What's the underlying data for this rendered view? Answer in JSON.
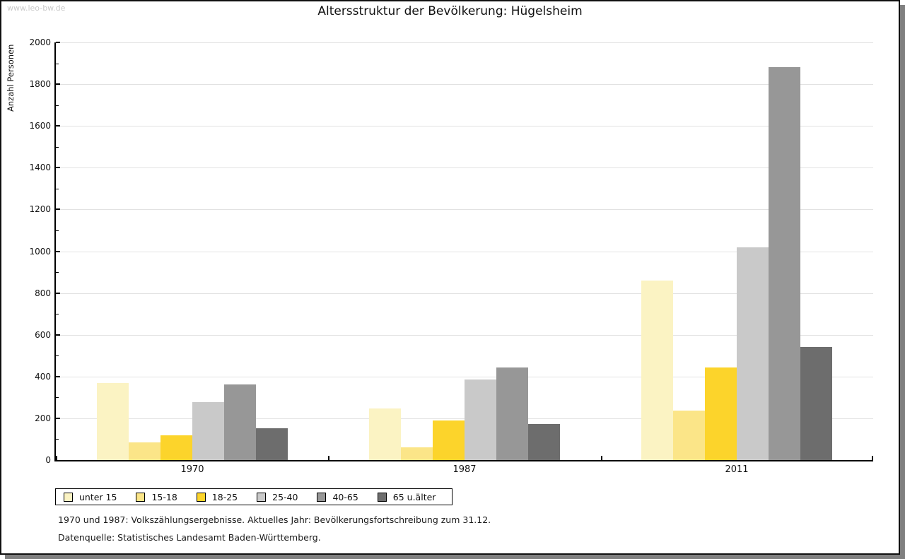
{
  "watermark": "www.leo-bw.de",
  "header": {
    "title": "Altersstruktur der Bevölkerung: Hügelsheim"
  },
  "chart_data": {
    "type": "bar",
    "title": "Altersstruktur der Bevölkerung: Hügelsheim",
    "xlabel": "",
    "ylabel": "Anzahl Personen",
    "ylim": [
      0,
      2000
    ],
    "ytick_step": 200,
    "ytick_minor_step": 100,
    "grid": true,
    "legend_position": "bottom",
    "categories": [
      "1970",
      "1987",
      "2011"
    ],
    "series": [
      {
        "name": "unter 15",
        "color": "#FBF3C3",
        "values": [
          370,
          247,
          860
        ]
      },
      {
        "name": "15-18",
        "color": "#FBE588",
        "values": [
          85,
          60,
          237
        ]
      },
      {
        "name": "18-25",
        "color": "#FCD42B",
        "values": [
          117,
          190,
          443
        ]
      },
      {
        "name": "25-40",
        "color": "#C9C9C9",
        "values": [
          278,
          385,
          1017
        ]
      },
      {
        "name": "40-65",
        "color": "#979797",
        "values": [
          363,
          443,
          1883
        ]
      },
      {
        "name": "65 u.älter",
        "color": "#6D6D6D",
        "values": [
          152,
          173,
          543
        ]
      }
    ]
  },
  "colors": {
    "gridline": "#e2e2e2",
    "axis": "#000000",
    "watermark": "#c9c9c9",
    "shadow": "#808080"
  },
  "footnotes": {
    "line1": "1970 und 1987: Volkszählungsergebnisse. Aktuelles Jahr: Bevölkerungsfortschreibung zum 31.12.",
    "line2": "Datenquelle: Statistisches Landesamt Baden-Württemberg."
  }
}
